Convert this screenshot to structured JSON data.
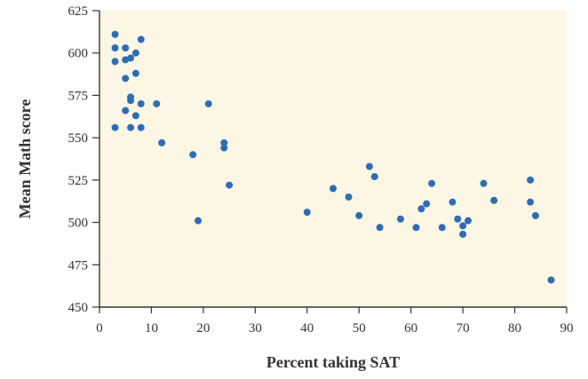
{
  "chart_data": {
    "type": "scatter",
    "title": "",
    "xlabel": "Percent taking SAT",
    "ylabel": "Mean Math score",
    "xlim": [
      0,
      90
    ],
    "ylim": [
      450,
      625
    ],
    "xticks": [
      0,
      10,
      20,
      30,
      40,
      50,
      60,
      70,
      80,
      90
    ],
    "yticks": [
      450,
      475,
      500,
      525,
      550,
      575,
      600,
      625
    ],
    "grid": false,
    "legend": "none",
    "plot_background": "#fcf7e4",
    "marker_color": "#2e6db4",
    "axis_color": "#333333",
    "x": [
      3,
      3,
      3,
      3,
      5,
      5,
      5,
      5,
      6,
      6,
      6,
      6,
      7,
      7,
      7,
      8,
      8,
      8,
      11,
      12,
      18,
      19,
      21,
      24,
      24,
      25,
      40,
      45,
      48,
      50,
      52,
      53,
      54,
      58,
      61,
      62,
      63,
      64,
      66,
      68,
      69,
      70,
      70,
      71,
      74,
      76,
      83,
      83,
      84,
      87
    ],
    "y": [
      611,
      603,
      595,
      556,
      603,
      596,
      585,
      566,
      597,
      574,
      572,
      556,
      600,
      588,
      563,
      608,
      570,
      556,
      570,
      547,
      540,
      501,
      570,
      547,
      544,
      522,
      506,
      520,
      515,
      504,
      533,
      527,
      497,
      502,
      497,
      508,
      511,
      523,
      497,
      512,
      502,
      498,
      493,
      501,
      523,
      513,
      525,
      512,
      504,
      466
    ]
  }
}
